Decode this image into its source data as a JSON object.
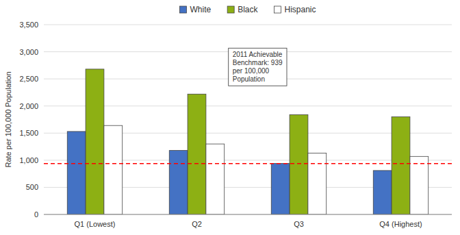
{
  "chart_data": {
    "type": "bar",
    "categories": [
      "Q1 (Lowest)",
      "Q2",
      "Q3",
      "Q4 (Highest)"
    ],
    "series": [
      {
        "name": "White",
        "color": "#4472C4",
        "values": [
          1530,
          1180,
          940,
          810
        ]
      },
      {
        "name": "Black",
        "color": "#8DB014",
        "values": [
          2680,
          2220,
          1840,
          1800
        ]
      },
      {
        "name": "Hispanic",
        "color": "#FFFFFF",
        "values": [
          1640,
          1300,
          1130,
          1070
        ]
      }
    ],
    "reference_line": {
      "value": 939,
      "color": "#FF0000"
    },
    "annotation": "2011 Achievable\nBenchmark: 939\nper 100,000\nPopulation",
    "y_label": "Rate per 100,000 Population",
    "ylim": [
      0,
      3500
    ],
    "yticks": [
      0,
      500,
      {
        "value": 1000,
        "label": "1,000"
      },
      {
        "value": 1500,
        "label": "1,500"
      },
      {
        "value": 2000,
        "label": "2,000"
      },
      {
        "value": 2500,
        "label": "2,500"
      },
      {
        "value": 3000,
        "label": "3,000"
      },
      {
        "value": 3500,
        "label": "3,500"
      }
    ],
    "grid": true,
    "legend": "top"
  }
}
